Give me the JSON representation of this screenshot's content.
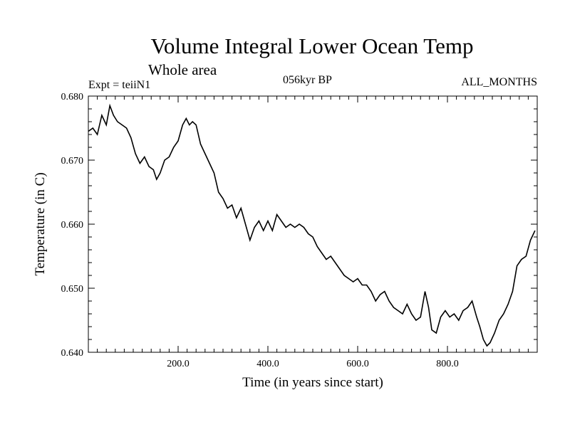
{
  "header": {
    "title": "Volume Integral Lower Ocean Temp",
    "subtitle": "Whole area",
    "expt": "Expt = teiiN1",
    "period": "056kyr BP",
    "months": "ALL_MONTHS"
  },
  "chart_data": {
    "type": "line",
    "xlabel": "Time (in years since start)",
    "ylabel": "Temperature (in C)",
    "xlim": [
      0,
      1000
    ],
    "ylim": [
      0.64,
      0.68
    ],
    "x_ticks": [
      200,
      400,
      600,
      800
    ],
    "x_tick_labels": [
      "200.0",
      "400.0",
      "600.0",
      "800.0"
    ],
    "y_ticks": [
      0.64,
      0.65,
      0.66,
      0.67,
      0.68
    ],
    "y_tick_labels": [
      "0.640",
      "0.650",
      "0.660",
      "0.670",
      "0.680"
    ],
    "grid": false,
    "series": [
      {
        "x": [
          0,
          10,
          20,
          30,
          40,
          48,
          56,
          65,
          75,
          85,
          95,
          105,
          115,
          125,
          135,
          145,
          152,
          160,
          170,
          180,
          190,
          200,
          210,
          218,
          225,
          232,
          240,
          250,
          260,
          270,
          280,
          290,
          300,
          310,
          320,
          330,
          340,
          350,
          360,
          370,
          380,
          390,
          400,
          410,
          420,
          430,
          440,
          450,
          460,
          470,
          480,
          490,
          500,
          510,
          520,
          530,
          540,
          550,
          560,
          570,
          580,
          590,
          600,
          610,
          620,
          630,
          640,
          650,
          660,
          670,
          680,
          690,
          700,
          710,
          720,
          730,
          740,
          750,
          758,
          765,
          775,
          785,
          795,
          805,
          815,
          825,
          835,
          845,
          855,
          865,
          872,
          880,
          888,
          895,
          905,
          915,
          925,
          935,
          945,
          955,
          965,
          975,
          985,
          995
        ],
        "y": [
          0.6745,
          0.675,
          0.674,
          0.677,
          0.6755,
          0.6785,
          0.677,
          0.676,
          0.6755,
          0.675,
          0.6735,
          0.671,
          0.6695,
          0.6705,
          0.669,
          0.6685,
          0.667,
          0.668,
          0.67,
          0.6705,
          0.672,
          0.673,
          0.6755,
          0.6765,
          0.6755,
          0.676,
          0.6755,
          0.6725,
          0.671,
          0.6695,
          0.668,
          0.665,
          0.664,
          0.6625,
          0.663,
          0.661,
          0.6625,
          0.66,
          0.6575,
          0.6595,
          0.6605,
          0.659,
          0.6605,
          0.659,
          0.6615,
          0.6605,
          0.6595,
          0.66,
          0.6595,
          0.66,
          0.6595,
          0.6585,
          0.658,
          0.6565,
          0.6555,
          0.6545,
          0.655,
          0.654,
          0.653,
          0.652,
          0.6515,
          0.651,
          0.6515,
          0.6505,
          0.6505,
          0.6495,
          0.648,
          0.649,
          0.6495,
          0.648,
          0.647,
          0.6465,
          0.646,
          0.6475,
          0.646,
          0.645,
          0.6455,
          0.6495,
          0.647,
          0.6435,
          0.643,
          0.6455,
          0.6465,
          0.6455,
          0.646,
          0.645,
          0.6465,
          0.647,
          0.648,
          0.6455,
          0.644,
          0.642,
          0.641,
          0.6415,
          0.643,
          0.645,
          0.646,
          0.6475,
          0.6495,
          0.6535,
          0.6545,
          0.655,
          0.6575,
          0.659
        ]
      }
    ]
  }
}
